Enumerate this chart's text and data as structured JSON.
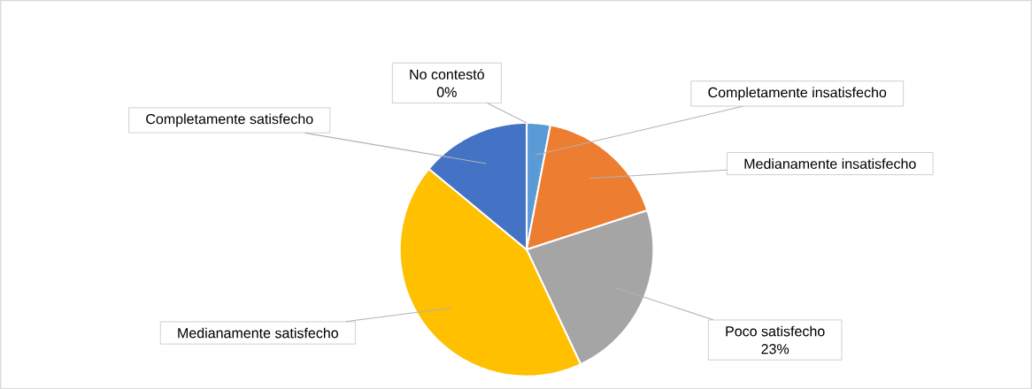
{
  "chart_data": {
    "type": "pie",
    "categories": [
      "No contestó",
      "Completamente insatisfecho",
      "Medianamente insatisfecho",
      "Poco satisfecho",
      "Medianamente satisfecho",
      "Completamente satisfecho"
    ],
    "values": [
      0,
      3,
      17,
      23,
      43,
      14
    ],
    "colors": [
      "#70ad47",
      "#5b9bd5",
      "#ed7d31",
      "#a5a5a5",
      "#ffc000",
      "#4472c4"
    ],
    "value_labels": [
      "0%",
      null,
      null,
      "23%",
      null,
      null
    ]
  }
}
